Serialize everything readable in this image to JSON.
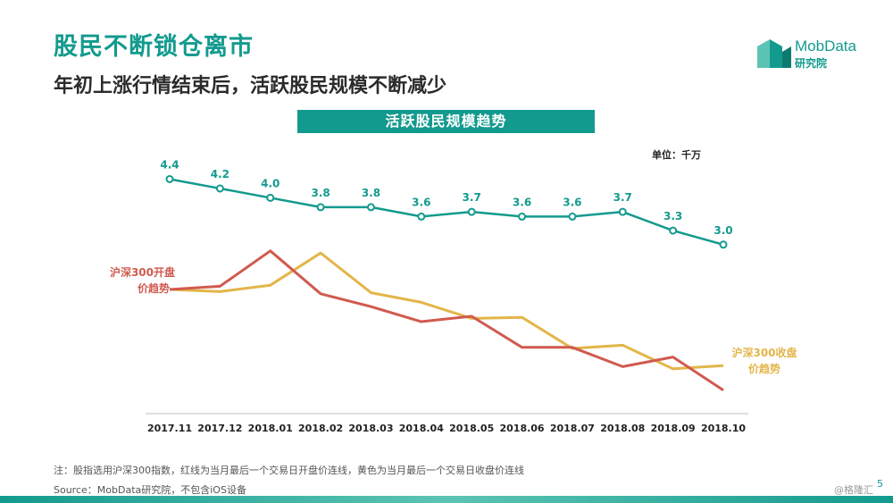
{
  "header": {
    "title": "股民不断锁仓离市",
    "subtitle": "年初上涨行情结束后，活跃股民规模不断减少"
  },
  "logo": {
    "brand": "MobData",
    "sub": "研究院"
  },
  "chart_data": {
    "type": "line",
    "title": "活跃股民规模趋势",
    "unit_label": "单位：千万",
    "categories": [
      "2017.11",
      "2017.12",
      "2018.01",
      "2018.02",
      "2018.03",
      "2018.04",
      "2018.05",
      "2018.06",
      "2018.07",
      "2018.08",
      "2018.09",
      "2018.10"
    ],
    "series": [
      {
        "name": "活跃股民规模",
        "color": "#139a8e",
        "values": [
          4.4,
          4.2,
          4.0,
          3.8,
          3.8,
          3.6,
          3.7,
          3.6,
          3.6,
          3.7,
          3.3,
          3.0
        ],
        "labels": [
          "4.4",
          "4.2",
          "4.0",
          "3.8",
          "3.8",
          "3.6",
          "3.7",
          "3.6",
          "3.6",
          "3.7",
          "3.3",
          "3.0"
        ]
      },
      {
        "name": "沪深300开盘价趋势",
        "color": "#d15a4f",
        "values": [
          4050,
          4080,
          4410,
          4010,
          3890,
          3750,
          3800,
          3510,
          3510,
          3330,
          3420,
          3110
        ]
      },
      {
        "name": "沪深300收盘价趋势",
        "color": "#e3b649",
        "values": [
          4050,
          4030,
          4090,
          4390,
          4020,
          3930,
          3780,
          3790,
          3500,
          3530,
          3310,
          3340
        ]
      }
    ],
    "legend_labels": {
      "open_line1": "沪深300开盘",
      "open_line2": "价趋势",
      "close_line1": "沪深300收盘",
      "close_line2": "价趋势"
    },
    "grid": false
  },
  "footer": {
    "note": "注：股指选用沪深300指数，红线为当月最后一个交易日开盘价连线，黄色为当月最后一个交易日收盘价连线",
    "source": "Source：MobData研究院，不包含iOS设备",
    "watermark": "@格隆汇",
    "page": "5"
  }
}
